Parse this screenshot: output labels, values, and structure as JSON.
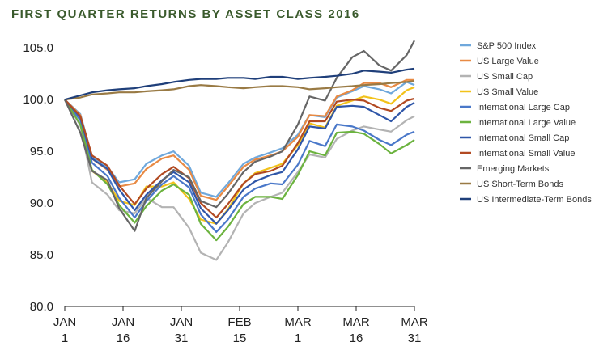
{
  "chart_data": {
    "type": "line",
    "title": "FIRST QUARTER RETURNS BY ASSET CLASS 2016",
    "xlabel": "",
    "ylabel": "",
    "ylim": [
      80,
      106.5
    ],
    "y_ticks": [
      80.0,
      85.0,
      90.0,
      95.0,
      100.0,
      105.0
    ],
    "y_tick_labels": [
      "80.0",
      "85.0",
      "90.0",
      "95.0",
      "100.0",
      "105.0"
    ],
    "x_ticks": [
      {
        "line1": "JAN",
        "line2": "1",
        "date": "2016-01-01"
      },
      {
        "line1": "JAN",
        "line2": "16",
        "date": "2016-01-16"
      },
      {
        "line1": "JAN",
        "line2": "31",
        "date": "2016-01-31"
      },
      {
        "line1": "FEB",
        "line2": "15",
        "date": "2016-02-15"
      },
      {
        "line1": "MAR",
        "line2": "1",
        "date": "2016-03-01"
      },
      {
        "line1": "MAR",
        "line2": "16",
        "date": "2016-03-16"
      },
      {
        "line1": "MAR",
        "line2": "31",
        "date": "2016-03-31"
      }
    ],
    "x": [
      "2016-01-01",
      "2016-01-05",
      "2016-01-08",
      "2016-01-12",
      "2016-01-15",
      "2016-01-19",
      "2016-01-22",
      "2016-01-26",
      "2016-01-29",
      "2016-02-02",
      "2016-02-05",
      "2016-02-09",
      "2016-02-12",
      "2016-02-16",
      "2016-02-19",
      "2016-02-23",
      "2016-02-26",
      "2016-03-01",
      "2016-03-04",
      "2016-03-08",
      "2016-03-11",
      "2016-03-15",
      "2016-03-18",
      "2016-03-22",
      "2016-03-25",
      "2016-03-29",
      "2016-03-31"
    ],
    "grid": false,
    "legend_position": "right",
    "series": [
      {
        "name": "S&P 500 Index",
        "color": "#6fa8dc",
        "values": [
          100.0,
          98.6,
          94.5,
          93.5,
          92.0,
          92.3,
          93.8,
          94.6,
          95.0,
          93.6,
          91.0,
          90.6,
          91.9,
          93.8,
          94.4,
          94.9,
          95.3,
          96.6,
          98.5,
          98.3,
          100.2,
          100.8,
          101.3,
          101.0,
          100.6,
          101.7,
          101.4
        ]
      },
      {
        "name": "US Large Value",
        "color": "#e88a44",
        "values": [
          100.0,
          98.5,
          94.3,
          93.2,
          91.6,
          91.9,
          93.3,
          94.3,
          94.6,
          93.2,
          90.7,
          90.3,
          91.6,
          93.5,
          94.2,
          94.6,
          95.0,
          96.4,
          98.5,
          98.4,
          100.3,
          100.9,
          101.6,
          101.6,
          101.2,
          101.9,
          101.9
        ]
      },
      {
        "name": "US Small Cap",
        "color": "#b3b3b3",
        "values": [
          100.0,
          97.5,
          92.0,
          90.8,
          89.3,
          89.0,
          90.5,
          89.6,
          89.6,
          87.6,
          85.2,
          84.5,
          86.2,
          89.0,
          90.0,
          90.6,
          91.0,
          93.0,
          94.7,
          94.4,
          96.2,
          97.0,
          97.4,
          97.1,
          96.9,
          98.0,
          98.4
        ]
      },
      {
        "name": "US Small Value",
        "color": "#f2c21a",
        "values": [
          100.0,
          98.1,
          93.1,
          92.0,
          90.2,
          89.8,
          91.6,
          91.6,
          92.0,
          90.4,
          88.4,
          88.0,
          89.4,
          91.9,
          92.9,
          93.4,
          93.8,
          95.6,
          97.7,
          97.3,
          99.4,
          99.9,
          100.3,
          100.0,
          99.6,
          100.9,
          101.2
        ]
      },
      {
        "name": "International Large Cap",
        "color": "#4a78c9",
        "values": [
          100.0,
          98.0,
          93.9,
          92.6,
          90.5,
          88.6,
          90.2,
          91.8,
          92.6,
          91.5,
          88.9,
          87.2,
          88.4,
          90.6,
          91.4,
          91.9,
          91.8,
          93.7,
          96.0,
          95.5,
          97.6,
          97.4,
          97.0,
          96.1,
          95.6,
          96.6,
          96.9
        ]
      },
      {
        "name": "International Large Value",
        "color": "#6cb33f",
        "values": [
          100.0,
          97.6,
          93.2,
          91.8,
          89.8,
          88.1,
          89.7,
          91.2,
          91.8,
          90.8,
          88.0,
          86.4,
          87.7,
          89.9,
          90.6,
          90.6,
          90.4,
          92.7,
          95.0,
          94.6,
          96.8,
          96.9,
          96.7,
          95.7,
          94.8,
          95.6,
          96.1
        ]
      },
      {
        "name": "International Small Cap",
        "color": "#2f56a8",
        "values": [
          100.0,
          98.3,
          94.3,
          93.3,
          91.3,
          89.3,
          90.8,
          92.2,
          93.0,
          92.0,
          89.5,
          88.0,
          89.3,
          91.3,
          92.1,
          92.7,
          93.0,
          95.2,
          97.4,
          97.2,
          99.3,
          99.4,
          99.3,
          98.5,
          97.9,
          99.3,
          99.7
        ]
      },
      {
        "name": "International Small Value",
        "color": "#b24a22",
        "values": [
          100.0,
          98.4,
          94.6,
          93.6,
          91.7,
          89.9,
          91.4,
          92.8,
          93.5,
          92.4,
          90.0,
          88.6,
          89.9,
          91.9,
          92.8,
          93.1,
          93.6,
          95.8,
          97.9,
          97.9,
          99.8,
          100.0,
          99.9,
          99.2,
          98.9,
          99.9,
          100.1
        ]
      },
      {
        "name": "Emerging Markets",
        "color": "#666666",
        "values": [
          100.0,
          96.8,
          93.1,
          92.2,
          89.5,
          87.3,
          90.5,
          92.1,
          93.2,
          92.5,
          90.2,
          89.6,
          90.9,
          93.0,
          94.0,
          94.5,
          95.0,
          97.6,
          100.3,
          99.9,
          102.1,
          104.1,
          104.7,
          103.3,
          102.8,
          104.3,
          105.7
        ]
      },
      {
        "name": "US Short-Term Bonds",
        "color": "#997a44",
        "values": [
          100.0,
          100.2,
          100.5,
          100.6,
          100.7,
          100.7,
          100.8,
          100.9,
          101.0,
          101.3,
          101.4,
          101.3,
          101.2,
          101.1,
          101.2,
          101.3,
          101.3,
          101.2,
          101.0,
          101.1,
          101.2,
          101.3,
          101.4,
          101.5,
          101.6,
          101.7,
          101.8
        ]
      },
      {
        "name": "US Intermediate-Term Bonds",
        "color": "#1f3f7a",
        "values": [
          100.0,
          100.4,
          100.7,
          100.9,
          101.0,
          101.1,
          101.3,
          101.5,
          101.7,
          101.9,
          102.0,
          102.0,
          102.1,
          102.1,
          102.0,
          102.2,
          102.2,
          102.0,
          102.1,
          102.2,
          102.3,
          102.5,
          102.8,
          102.7,
          102.6,
          102.9,
          103.0
        ]
      }
    ]
  }
}
